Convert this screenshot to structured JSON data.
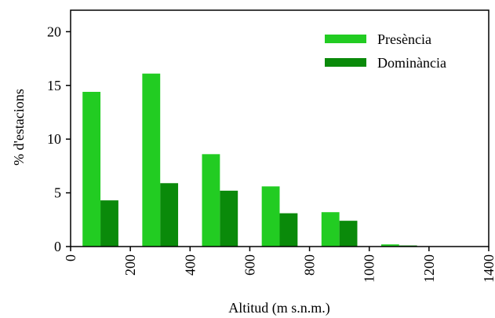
{
  "chart_data": {
    "type": "bar",
    "xlabel": "Altitud (m s.n.m.)",
    "ylabel": "% d'estacions",
    "xlim": [
      0,
      1400
    ],
    "ylim": [
      0,
      22
    ],
    "x_ticks": [
      "0",
      "200",
      "400",
      "600",
      "800",
      "1000",
      "1200",
      "1400"
    ],
    "y_ticks": [
      "0",
      "5",
      "10",
      "15",
      "20"
    ],
    "bin_width": 200,
    "bin_starts": [
      0,
      200,
      400,
      600,
      800,
      1000
    ],
    "grid": false,
    "legend_position": "top-right",
    "series": [
      {
        "name": "Presència",
        "color": "#22cc22",
        "values": [
          14.4,
          16.1,
          8.6,
          5.6,
          3.2,
          0.2
        ]
      },
      {
        "name": "Dominància",
        "color": "#0a8a0a",
        "values": [
          4.3,
          5.9,
          5.2,
          3.1,
          2.4,
          0.1
        ]
      }
    ]
  }
}
